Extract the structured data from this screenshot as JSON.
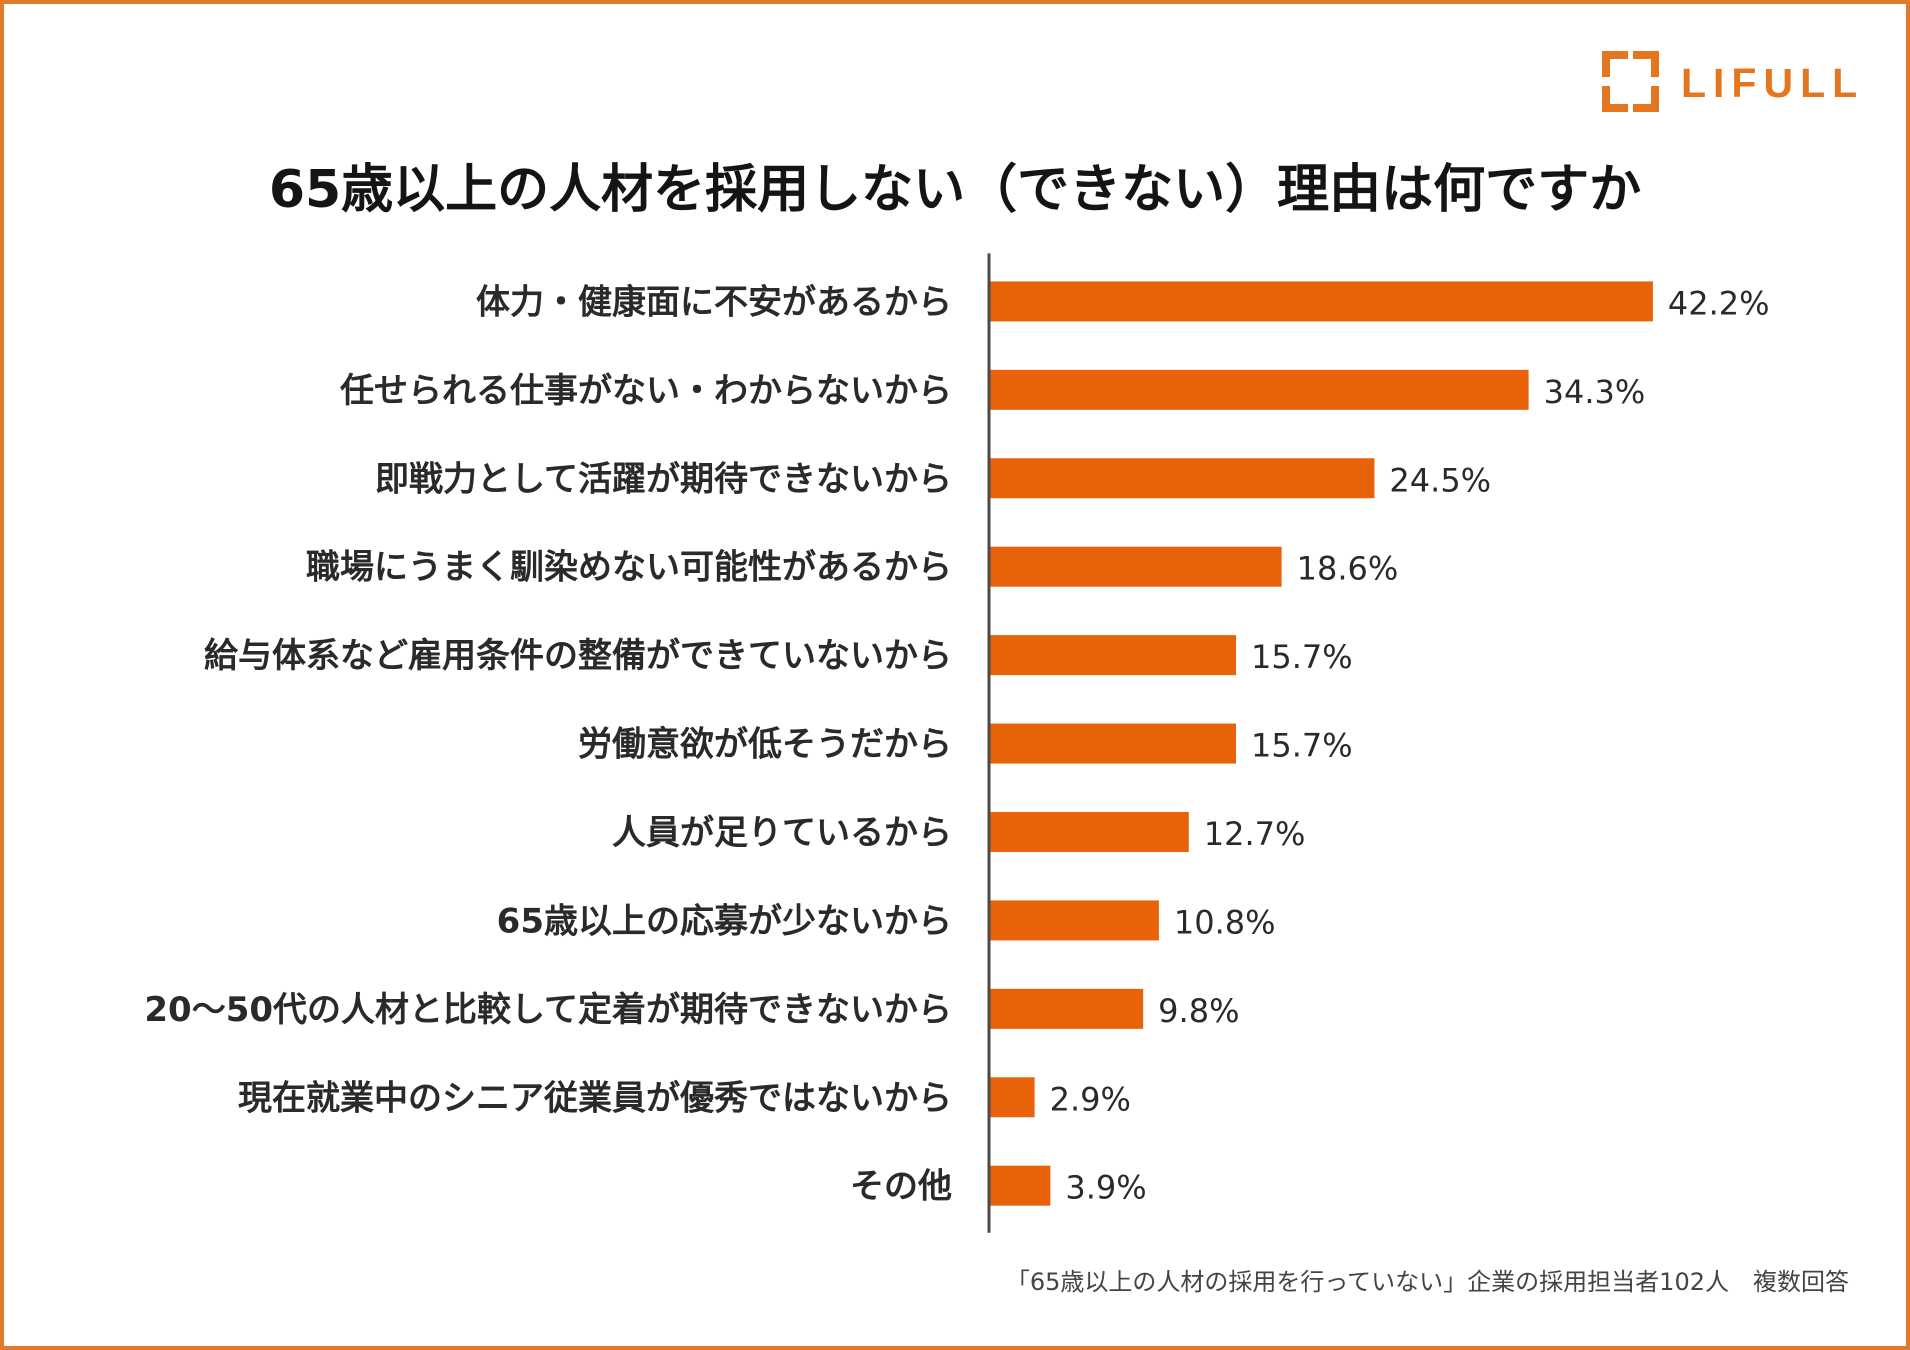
{
  "logo": {
    "text": "LIFULL",
    "icon": "lifull-bracket-icon"
  },
  "colors": {
    "bar": "#E8620A",
    "frame": "#E27A2E",
    "logo": "#E4761F",
    "axis": "#4a4a4a"
  },
  "chart_data": {
    "type": "bar",
    "orientation": "horizontal",
    "title": "65歳以上の人材を採用しない（できない）理由は何ですか",
    "categories": [
      "体力・健康面に不安があるから",
      "任せられる仕事がない・わからないから",
      "即戦力として活躍が期待できないから",
      "職場にうまく馴染めない可能性があるから",
      "給与体系など雇用条件の整備ができていないから",
      "労働意欲が低そうだから",
      "人員が足りているから",
      "65歳以上の応募が少ないから",
      "20～50代の人材と比較して定着が期待できないから",
      "現在就業中のシニア従業員が優秀ではないから",
      "その他"
    ],
    "values": [
      42.2,
      34.3,
      24.5,
      18.6,
      15.7,
      15.7,
      12.7,
      10.8,
      9.8,
      2.9,
      3.9
    ],
    "value_suffix": "%",
    "xlabel": "",
    "ylabel": "",
    "xlim": [
      0,
      50
    ],
    "grid": false,
    "note": "「65歳以上の人材の採用を行っていない」企業の採用担当者102人　複数回答"
  }
}
